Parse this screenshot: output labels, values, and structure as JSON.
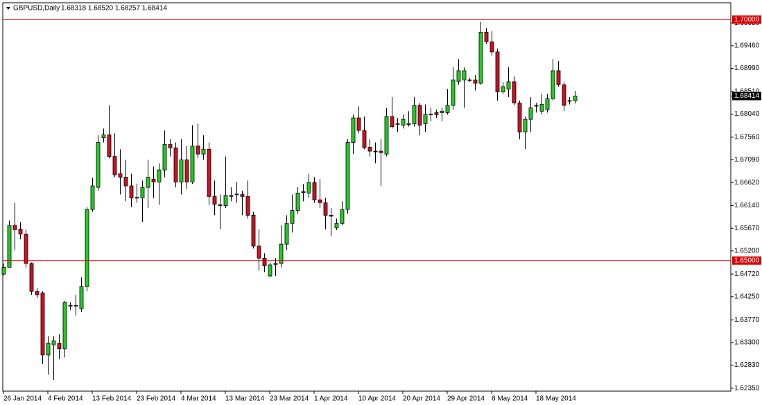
{
  "chart_data": {
    "type": "candlestick",
    "title": "GBPUSD,Daily",
    "ohlc_text": "1.68318 1.68520 1.68257 1.68414",
    "categories": [
      "26 Jan 2014",
      null,
      null,
      null,
      null,
      null,
      null,
      null,
      "4 Feb 2014",
      null,
      null,
      null,
      null,
      null,
      null,
      null,
      "13 Feb 2014",
      null,
      null,
      null,
      null,
      null,
      null,
      null,
      "23 Feb 2014",
      null,
      null,
      null,
      null,
      null,
      null,
      null,
      "4 Mar 2014",
      null,
      null,
      null,
      null,
      null,
      null,
      null,
      "13 Mar 2014",
      null,
      null,
      null,
      null,
      null,
      null,
      null,
      "23 Mar 2014",
      null,
      null,
      null,
      null,
      null,
      null,
      null,
      "1 Apr 2014",
      null,
      null,
      null,
      null,
      null,
      null,
      null,
      "10 Apr 2014",
      null,
      null,
      null,
      null,
      null,
      null,
      null,
      "20 Apr 2014",
      null,
      null,
      null,
      null,
      null,
      null,
      null,
      "29 Apr 2014",
      null,
      null,
      null,
      null,
      null,
      null,
      null,
      "8 May 2014",
      null,
      null,
      null,
      null,
      null,
      null,
      null,
      "18 May 2014",
      null,
      null,
      null,
      null,
      null,
      null,
      null
    ],
    "open": [
      1.6472,
      1.6486,
      1.6573,
      1.6565,
      1.6555,
      1.6494,
      1.6436,
      1.6433,
      1.6304,
      1.6325,
      1.6328,
      1.6317,
      1.6407,
      1.6406,
      1.64,
      1.6446,
      1.6606,
      1.6652,
      1.6755,
      1.6761,
      1.6716,
      1.668,
      1.6673,
      1.6655,
      1.663,
      1.663,
      1.6652,
      1.6669,
      1.6663,
      1.6688,
      1.6741,
      1.6734,
      1.6663,
      1.6709,
      1.6663,
      1.6738,
      1.6721,
      1.6731,
      1.6633,
      1.6616,
      1.6614,
      1.6635,
      1.6637,
      1.6637,
      1.6633,
      1.6594,
      1.653,
      1.6505,
      1.6468,
      1.6494,
      1.6494,
      1.6534,
      1.6577,
      1.6604,
      1.6643,
      1.664,
      1.6662,
      1.6626,
      1.662,
      1.6594,
      1.6568,
      1.6577,
      1.6606,
      1.6745,
      1.6796,
      1.677,
      1.6735,
      1.6727,
      1.6727,
      1.6721,
      1.6799,
      1.6784,
      1.6781,
      1.6784,
      1.6784,
      1.6822,
      1.6784,
      1.6803,
      1.6807,
      1.6807,
      1.6807,
      1.6822,
      1.6872,
      1.6875,
      1.6875,
      1.6875,
      1.6868,
      1.6974,
      1.6954,
      1.6933,
      1.685,
      1.6856,
      1.6871,
      1.6827,
      1.6767,
      1.6793,
      1.6822,
      1.681,
      1.6813,
      1.6836,
      1.6894,
      1.6865,
      1.6832,
      1.68318
    ],
    "high": [
      1.6494,
      1.6583,
      1.662,
      1.658,
      1.6565,
      1.6496,
      1.6443,
      1.6436,
      1.6343,
      1.6343,
      1.6347,
      1.6416,
      1.6413,
      1.6429,
      1.6465,
      1.6611,
      1.6672,
      1.676,
      1.6774,
      1.6822,
      1.6764,
      1.6731,
      1.6709,
      1.668,
      1.6659,
      1.6666,
      1.6709,
      1.6695,
      1.6702,
      1.677,
      1.6752,
      1.6745,
      1.6752,
      1.6738,
      1.6781,
      1.6784,
      1.676,
      1.6745,
      1.6666,
      1.6637,
      1.6716,
      1.6652,
      1.6663,
      1.6645,
      1.6666,
      1.6601,
      1.6565,
      1.6515,
      1.6496,
      1.6505,
      1.6573,
      1.6594,
      1.6637,
      1.6652,
      1.6659,
      1.668,
      1.6673,
      1.6669,
      1.663,
      1.6609,
      1.6587,
      1.6623,
      1.6752,
      1.6803,
      1.682,
      1.6799,
      1.6752,
      1.6745,
      1.6752,
      1.6817,
      1.6839,
      1.6796,
      1.6803,
      1.681,
      1.6839,
      1.6827,
      1.6824,
      1.6817,
      1.6813,
      1.6817,
      1.6856,
      1.6901,
      1.6918,
      1.6901,
      1.6879,
      1.6885,
      1.6995,
      1.6983,
      1.6976,
      1.694,
      1.6871,
      1.6901,
      1.6882,
      1.6832,
      1.6799,
      1.6839,
      1.6827,
      1.6846,
      1.6846,
      1.6918,
      1.6914,
      1.6871,
      1.6839,
      1.6852
    ],
    "low": [
      1.6469,
      1.6486,
      1.6522,
      1.6544,
      1.6486,
      1.6429,
      1.6422,
      1.6285,
      1.6263,
      1.6252,
      1.6295,
      1.6299,
      1.6397,
      1.6386,
      1.6393,
      1.6436,
      1.6601,
      1.6645,
      1.6745,
      1.6712,
      1.6673,
      1.6637,
      1.6623,
      1.6611,
      1.662,
      1.658,
      1.6609,
      1.663,
      1.6616,
      1.6673,
      1.6716,
      1.6652,
      1.6637,
      1.6649,
      1.6659,
      1.6712,
      1.6709,
      1.6616,
      1.6594,
      1.6565,
      1.6609,
      1.6623,
      1.662,
      1.6594,
      1.6587,
      1.6525,
      1.6479,
      1.6476,
      1.6465,
      1.6468,
      1.6486,
      1.6522,
      1.6558,
      1.6597,
      1.6623,
      1.663,
      1.662,
      1.6609,
      1.6565,
      1.6551,
      1.6563,
      1.6573,
      1.6597,
      1.6721,
      1.6764,
      1.6731,
      1.6716,
      1.6702,
      1.6655,
      1.6716,
      1.6774,
      1.6767,
      1.6774,
      1.6778,
      1.6778,
      1.676,
      1.6767,
      1.6789,
      1.6796,
      1.6789,
      1.6803,
      1.6813,
      1.6865,
      1.6817,
      1.6871,
      1.6853,
      1.6865,
      1.695,
      1.6925,
      1.6832,
      1.6846,
      1.6839,
      1.6822,
      1.6752,
      1.6731,
      1.6767,
      1.6807,
      1.6803,
      1.6807,
      1.6832,
      1.6861,
      1.681,
      1.6824,
      1.68257
    ],
    "close": [
      1.6486,
      1.6573,
      1.6564,
      1.6555,
      1.6494,
      1.6436,
      1.6429,
      1.6304,
      1.6328,
      1.6333,
      1.6317,
      1.6413,
      1.6406,
      1.6407,
      1.6446,
      1.6606,
      1.6655,
      1.6745,
      1.6761,
      1.6716,
      1.6678,
      1.6673,
      1.6655,
      1.663,
      1.6631,
      1.6652,
      1.6673,
      1.6663,
      1.6688,
      1.6741,
      1.6734,
      1.6663,
      1.6709,
      1.6663,
      1.6738,
      1.6721,
      1.6731,
      1.6633,
      1.6617,
      1.6614,
      1.6635,
      1.6633,
      1.6638,
      1.6633,
      1.6594,
      1.653,
      1.6505,
      1.6489,
      1.6491,
      1.6492,
      1.6534,
      1.6577,
      1.6604,
      1.664,
      1.6641,
      1.6662,
      1.6626,
      1.662,
      1.6594,
      1.6592,
      1.6577,
      1.6606,
      1.6745,
      1.6796,
      1.677,
      1.6735,
      1.6727,
      1.6726,
      1.6724,
      1.6799,
      1.6778,
      1.6783,
      1.6793,
      1.6782,
      1.6822,
      1.6781,
      1.6803,
      1.6804,
      1.6803,
      1.681,
      1.6822,
      1.6875,
      1.6894,
      1.6894,
      1.6874,
      1.6868,
      1.6974,
      1.6954,
      1.6933,
      1.685,
      1.6861,
      1.6871,
      1.6827,
      1.6767,
      1.6793,
      1.6817,
      1.6821,
      1.6824,
      1.6836,
      1.6894,
      1.6865,
      1.6822,
      1.6831,
      1.68414
    ],
    "up_color": "#22cc22",
    "down_color": "#cc1122",
    "ylim": [
      1.6229,
      1.7035
    ],
    "yticks": [
      {
        "value": 1.6235,
        "label": "1.62350"
      },
      {
        "value": 1.6283,
        "label": "1.62830"
      },
      {
        "value": 1.633,
        "label": "1.63300"
      },
      {
        "value": 1.6377,
        "label": "1.63770"
      },
      {
        "value": 1.6425,
        "label": "1.64250"
      },
      {
        "value": 1.6472,
        "label": "1.64720"
      },
      {
        "value": 1.652,
        "label": "1.65200"
      },
      {
        "value": 1.6567,
        "label": "1.65670"
      },
      {
        "value": 1.6614,
        "label": "1.66140"
      },
      {
        "value": 1.6662,
        "label": "1.66620"
      },
      {
        "value": 1.6709,
        "label": "1.67090"
      },
      {
        "value": 1.6756,
        "label": "1.67560"
      },
      {
        "value": 1.6804,
        "label": "1.68040"
      },
      {
        "value": 1.6851,
        "label": "1.68510"
      },
      {
        "value": 1.6899,
        "label": "1.68990"
      },
      {
        "value": 1.6946,
        "label": "1.69460"
      },
      {
        "value": 1.6993,
        "label": "1.69930"
      }
    ],
    "levels": [
      {
        "value": 1.7,
        "label": "1.70000"
      },
      {
        "value": 1.65,
        "label": "1.65000"
      }
    ],
    "level_color": "#dd0000"
  }
}
